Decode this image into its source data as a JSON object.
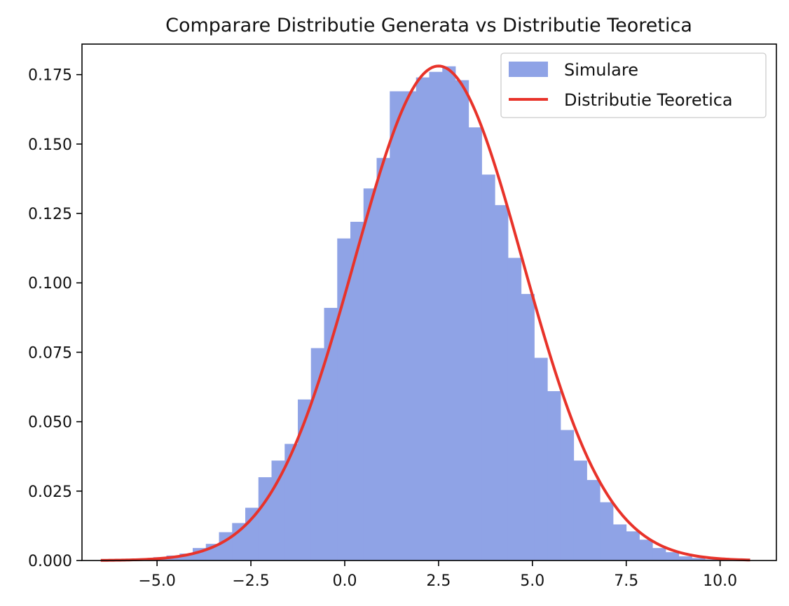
{
  "chart_data": {
    "type": "bar",
    "title": "Comparare Distributie Generata vs Distributie Teoretica",
    "xlabel": "",
    "ylabel": "",
    "xlim": [
      -7.0,
      11.5
    ],
    "ylim": [
      0.0,
      0.186
    ],
    "x_ticks": [
      -5.0,
      -2.5,
      0.0,
      2.5,
      5.0,
      7.5,
      10.0
    ],
    "x_tick_labels": [
      "−5.0",
      "−2.5",
      "0.0",
      "2.5",
      "5.0",
      "7.5",
      "10.0"
    ],
    "y_ticks": [
      0.0,
      0.025,
      0.05,
      0.075,
      0.1,
      0.125,
      0.15,
      0.175
    ],
    "y_tick_labels": [
      "0.000",
      "0.025",
      "0.050",
      "0.075",
      "0.100",
      "0.125",
      "0.150",
      "0.175"
    ],
    "grid": false,
    "legend_placement": "top-right",
    "series": [
      {
        "name": "Simulare",
        "kind": "histogram",
        "color": "#8fa3e6",
        "bin_edges": [
          -6.5,
          -6.15,
          -5.8,
          -5.45,
          -5.1,
          -4.75,
          -4.4,
          -4.05,
          -3.7,
          -3.35,
          -3.0,
          -2.65,
          -2.3,
          -1.95,
          -1.6,
          -1.25,
          -0.9,
          -0.55,
          -0.2,
          0.15,
          0.5,
          0.85,
          1.2,
          1.55,
          1.9,
          2.25,
          2.6,
          2.95,
          3.3,
          3.65,
          4.0,
          4.35,
          4.7,
          5.05,
          5.4,
          5.75,
          6.1,
          6.45,
          6.8,
          7.15,
          7.5,
          7.85,
          8.2,
          8.55,
          8.9,
          9.25,
          9.6,
          9.95,
          10.3
        ],
        "values": [
          0.0002,
          0.0003,
          0.0005,
          0.0008,
          0.0012,
          0.0018,
          0.0025,
          0.0045,
          0.006,
          0.0102,
          0.0135,
          0.019,
          0.03,
          0.036,
          0.042,
          0.058,
          0.0765,
          0.091,
          0.116,
          0.122,
          0.134,
          0.145,
          0.169,
          0.169,
          0.174,
          0.176,
          0.178,
          0.173,
          0.156,
          0.139,
          0.128,
          0.109,
          0.096,
          0.073,
          0.061,
          0.047,
          0.036,
          0.029,
          0.021,
          0.013,
          0.0105,
          0.0075,
          0.0045,
          0.003,
          0.0015,
          0.0009,
          0.0004,
          0.0002
        ]
      },
      {
        "name": "Distributie Teoretica",
        "kind": "line",
        "color": "#e8332a",
        "distribution": "normal",
        "mean": 2.5,
        "std": 2.24,
        "x_range": [
          -6.5,
          10.8
        ]
      }
    ]
  }
}
